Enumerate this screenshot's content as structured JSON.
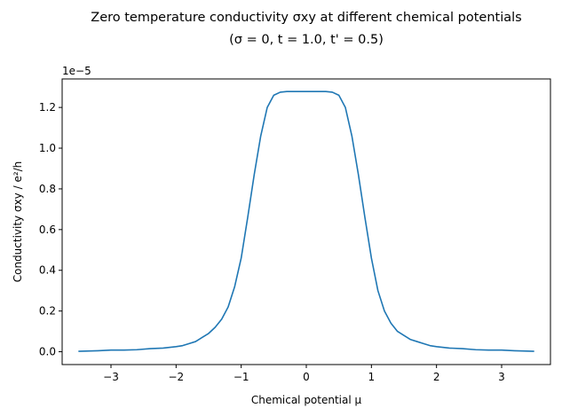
{
  "chart_data": {
    "type": "line",
    "title": "Zero temperature conductivity σxy at different chemical potentials",
    "subtitle": "(σ = 0, t = 1.0, t' = 0.5)",
    "xlabel": "Chemical potential μ",
    "ylabel": "Conductivity σxy / e²/h",
    "y_offset_label": "1e−5",
    "xlim": [
      -3.75,
      3.75
    ],
    "ylim": [
      -0.063,
      1.34
    ],
    "y_multiplier": 1e-05,
    "xticks": [
      -3,
      -2,
      -1,
      0,
      1,
      2,
      3
    ],
    "xtick_labels": [
      "−3",
      "−2",
      "−1",
      "0",
      "1",
      "2",
      "3"
    ],
    "yticks": [
      0.0,
      0.2,
      0.4,
      0.6,
      0.8,
      1.0,
      1.2
    ],
    "ytick_labels": [
      "0.0",
      "0.2",
      "0.4",
      "0.6",
      "0.8",
      "1.0",
      "1.2"
    ],
    "grid": false,
    "legend": "none",
    "series": [
      {
        "color": "#1f77b4",
        "x": [
          -3.5,
          -3.2,
          -3.0,
          -2.8,
          -2.6,
          -2.4,
          -2.2,
          -2.0,
          -1.9,
          -1.8,
          -1.7,
          -1.6,
          -1.5,
          -1.4,
          -1.3,
          -1.2,
          -1.1,
          -1.0,
          -0.9,
          -0.8,
          -0.7,
          -0.6,
          -0.5,
          -0.4,
          -0.3,
          -0.2,
          0.0,
          0.2,
          0.3,
          0.4,
          0.5,
          0.6,
          0.7,
          0.8,
          0.9,
          1.0,
          1.1,
          1.2,
          1.3,
          1.4,
          1.5,
          1.6,
          1.7,
          1.8,
          1.9,
          2.0,
          2.2,
          2.4,
          2.6,
          2.8,
          3.0,
          3.2,
          3.5
        ],
        "y": [
          0.002,
          0.005,
          0.008,
          0.008,
          0.01,
          0.015,
          0.018,
          0.025,
          0.03,
          0.04,
          0.05,
          0.07,
          0.09,
          0.12,
          0.16,
          0.22,
          0.32,
          0.46,
          0.66,
          0.87,
          1.06,
          1.2,
          1.26,
          1.275,
          1.278,
          1.278,
          1.278,
          1.278,
          1.278,
          1.275,
          1.26,
          1.2,
          1.06,
          0.87,
          0.66,
          0.46,
          0.3,
          0.2,
          0.14,
          0.1,
          0.08,
          0.06,
          0.05,
          0.04,
          0.03,
          0.025,
          0.018,
          0.015,
          0.01,
          0.008,
          0.008,
          0.005,
          0.002
        ]
      }
    ]
  }
}
